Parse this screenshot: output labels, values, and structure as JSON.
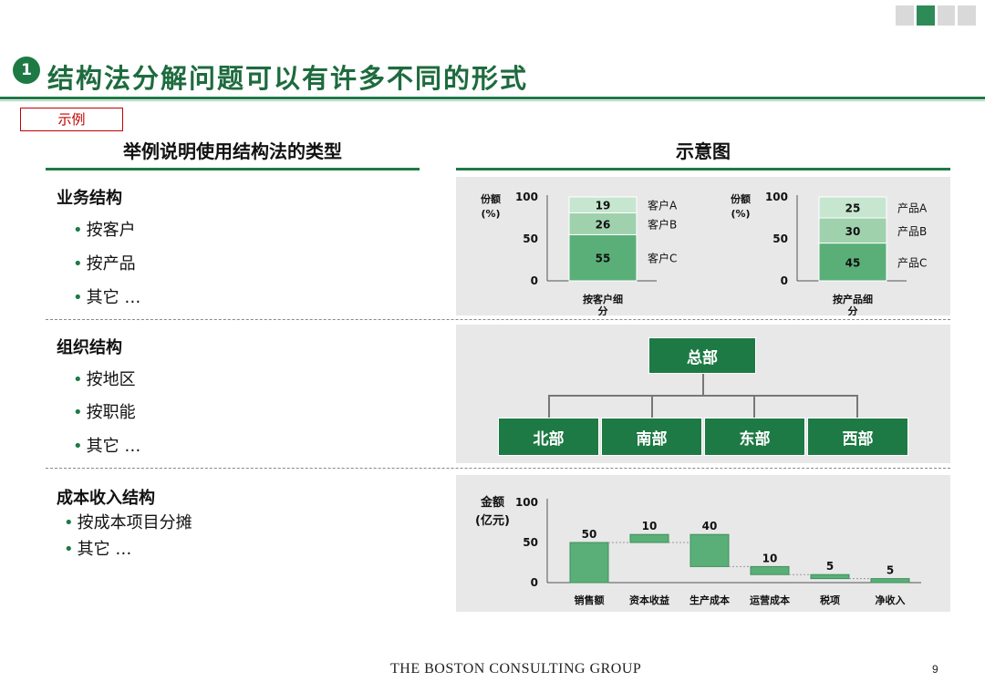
{
  "title": {
    "number": "1",
    "text": "结构法分解问题可以有许多不同的形式"
  },
  "example_label": "示例",
  "left_header": "举例说明使用结构法的类型",
  "right_header": "示意图",
  "sections": [
    {
      "title": "业务结构",
      "bullets": [
        "按客户",
        "按产品",
        "其它 …"
      ]
    },
    {
      "title": "组织结构",
      "bullets": [
        "按地区",
        "按职能",
        "其它 …"
      ]
    },
    {
      "title": "成本收入结构",
      "bullets": [
        "按成本项目分摊",
        "其它 …"
      ]
    }
  ],
  "org_chart": {
    "root": "总部",
    "children": [
      "北部",
      "南部",
      "东部",
      "西部"
    ]
  },
  "colors": {
    "dark_green": "#1e7a45",
    "mid_green": "#5aaf78",
    "light_green": "#9fd1ad",
    "pale_green": "#c6e6cf",
    "panel_gray": "#e8e8e8",
    "red": "#c00000"
  },
  "chart_data": [
    {
      "type": "bar",
      "stacked": true,
      "ylabel": "份额\n(%)",
      "ylim": [
        0,
        100
      ],
      "yticks": [
        0,
        50,
        100
      ],
      "categories": [
        "按客户细分"
      ],
      "series": [
        {
          "name": "客户C",
          "values": [
            55
          ]
        },
        {
          "name": "客户B",
          "values": [
            26
          ]
        },
        {
          "name": "客户A",
          "values": [
            19
          ]
        }
      ]
    },
    {
      "type": "bar",
      "stacked": true,
      "ylabel": "份额\n(%)",
      "ylim": [
        0,
        100
      ],
      "yticks": [
        0,
        50,
        100
      ],
      "categories": [
        "按产品细分"
      ],
      "series": [
        {
          "name": "产品C",
          "values": [
            45
          ]
        },
        {
          "name": "产品B",
          "values": [
            30
          ]
        },
        {
          "name": "产品A",
          "values": [
            25
          ]
        }
      ]
    },
    {
      "type": "bar",
      "waterfall": true,
      "ylabel": "金额\n(亿元)",
      "ylim": [
        0,
        100
      ],
      "yticks": [
        0,
        50,
        100
      ],
      "categories": [
        "销售额",
        "资本收益",
        "生产成本",
        "运营成本",
        "税项",
        "净收入"
      ],
      "values": [
        50,
        10,
        40,
        10,
        5,
        5
      ],
      "bases": [
        0,
        50,
        20,
        10,
        5,
        0
      ]
    }
  ],
  "footer": {
    "logo": "THE BOSTON CONSULTING GROUP",
    "page": "9"
  }
}
